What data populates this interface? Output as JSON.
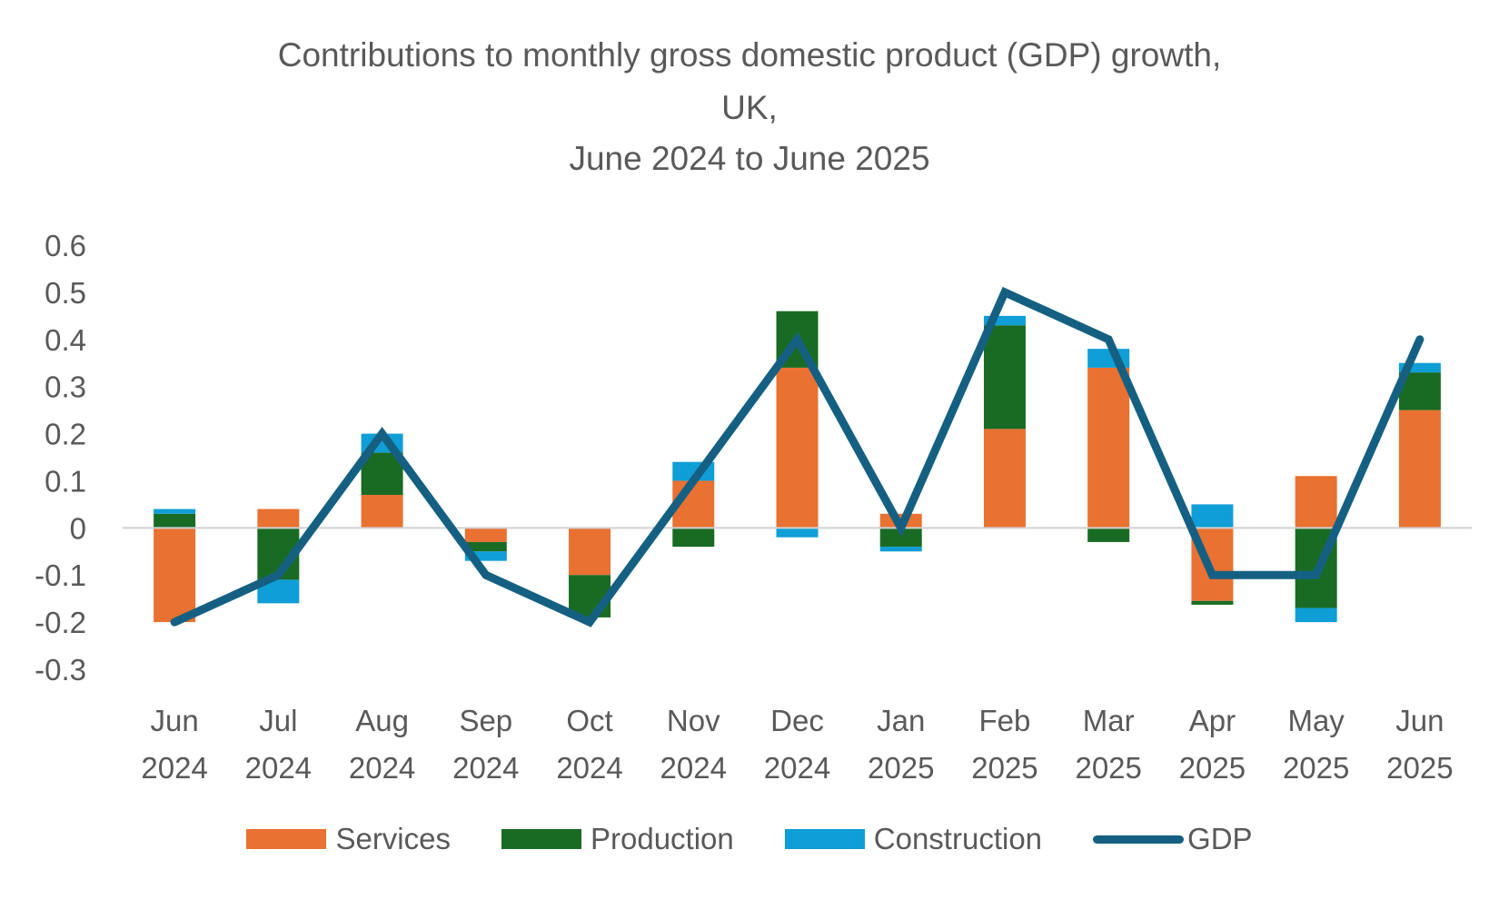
{
  "chart_data": {
    "type": "bar",
    "title_lines": [
      "Contributions to monthly gross domestic product (GDP) growth,",
      "UK,",
      "June 2024 to June 2025"
    ],
    "categories": [
      [
        "Jun",
        "2024"
      ],
      [
        "Jul",
        "2024"
      ],
      [
        "Aug",
        "2024"
      ],
      [
        "Sep",
        "2024"
      ],
      [
        "Oct",
        "2024"
      ],
      [
        "Nov",
        "2024"
      ],
      [
        "Dec",
        "2024"
      ],
      [
        "Jan",
        "2025"
      ],
      [
        "Feb",
        "2025"
      ],
      [
        "Mar",
        "2025"
      ],
      [
        "Apr",
        "2025"
      ],
      [
        "May",
        "2025"
      ],
      [
        "Jun",
        "2025"
      ]
    ],
    "ylim": [
      -0.3,
      0.6
    ],
    "yticks": [
      "0.6",
      "0.5",
      "0.4",
      "0.3",
      "0.2",
      "0.1",
      "0",
      "-0.1",
      "-0.2",
      "-0.3"
    ],
    "ytick_values": [
      0.6,
      0.5,
      0.4,
      0.3,
      0.2,
      0.1,
      0,
      -0.1,
      -0.2,
      -0.3
    ],
    "stacked": true,
    "series": [
      {
        "name": "Services",
        "kind": "bar",
        "color": "#E97132",
        "values": [
          -0.2,
          0.04,
          0.07,
          -0.03,
          -0.1,
          0.1,
          0.34,
          0.03,
          0.21,
          0.34,
          -0.155,
          0.11,
          0.25
        ]
      },
      {
        "name": "Production",
        "kind": "bar",
        "color": "#196B24",
        "values": [
          0.03,
          -0.11,
          0.09,
          -0.02,
          -0.09,
          -0.04,
          0.12,
          -0.04,
          0.22,
          -0.03,
          -0.008,
          -0.17,
          0.08
        ]
      },
      {
        "name": "Construction",
        "kind": "bar",
        "color": "#0F9ED5",
        "values": [
          0.01,
          -0.05,
          0.04,
          -0.02,
          0.0,
          0.04,
          -0.02,
          -0.01,
          0.02,
          0.04,
          0.05,
          -0.03,
          0.02
        ]
      },
      {
        "name": "GDP",
        "kind": "line",
        "color": "#156082",
        "values": [
          -0.2,
          -0.1,
          0.2,
          -0.1,
          -0.2,
          0.1,
          0.4,
          0.0,
          0.5,
          0.4,
          -0.1,
          -0.1,
          0.4
        ]
      }
    ],
    "legend_position": "bottom",
    "grid": false
  }
}
